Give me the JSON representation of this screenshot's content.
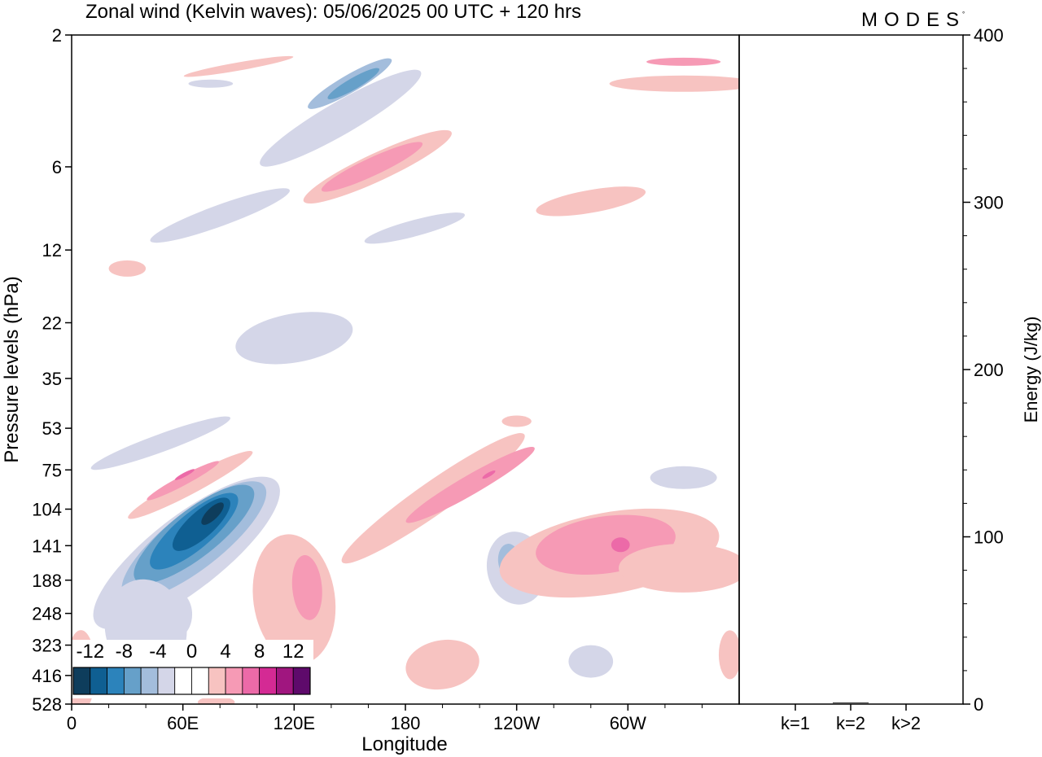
{
  "chart_data": [
    {
      "type": "heatmap",
      "title": "Zonal wind (Kelvin waves):  05/06/2025  00 UTC  + 120 hrs",
      "xlabel": "Longitude",
      "ylabel": "Pressure levels (hPa)",
      "x_ticks": [
        "0",
        "60E",
        "120E",
        "180",
        "120W",
        "60W"
      ],
      "x_tick_degrees": [
        0,
        60,
        120,
        180,
        240,
        300
      ],
      "xlim": [
        0,
        360
      ],
      "y_ticks": [
        "2",
        "6",
        "12",
        "22",
        "35",
        "53",
        "75",
        "104",
        "141",
        "188",
        "248",
        "323",
        "416",
        "528"
      ],
      "y_scale": "log-pressure (top = 2 hPa, bottom = 528 hPa)",
      "colorbar": {
        "labels": [
          "-12",
          "-8",
          "-4",
          "0",
          "4",
          "8",
          "12"
        ],
        "colors": [
          "#0e3d5c",
          "#0f5f92",
          "#2c83bb",
          "#66a0c9",
          "#a3bddc",
          "#d4d6e8",
          "#ffffff",
          "#ffffff",
          "#f7c3c1",
          "#f69ab5",
          "#ec6aa8",
          "#d42a94",
          "#a0167f",
          "#5e0a6b"
        ],
        "placement": "bottom-left"
      },
      "features": [
        {
          "label": "negative",
          "min_value": -14,
          "lon_center": 65,
          "pressure_hPa": 120
        },
        {
          "label": "positive",
          "min_value": 8,
          "lon_center": 70,
          "pressure_hPa": 80
        },
        {
          "label": "positive",
          "min_value": 8,
          "lon_center": 223,
          "pressure_hPa": 80
        },
        {
          "label": "positive",
          "min_value": 8,
          "lon_center": 297,
          "pressure_hPa": 140
        },
        {
          "label": "positive",
          "min_value": 6,
          "lon_center": 135,
          "pressure_hPa": 200
        },
        {
          "label": "negative",
          "min_value": -6,
          "lon_center": 235,
          "pressure_hPa": 160
        },
        {
          "label": "negative",
          "min_value": -6,
          "lon_center": 150,
          "pressure_hPa": 3
        },
        {
          "label": "positive",
          "min_value": 6,
          "lon_center": 160,
          "pressure_hPa": 6
        }
      ]
    },
    {
      "type": "bar",
      "ylabel": "Energy (J/kg)",
      "categories": [
        "k=1",
        "k=2",
        "k>2"
      ],
      "values": [
        0.5,
        1,
        0.5
      ],
      "ylim": [
        0,
        400
      ],
      "y_ticks": [
        0,
        100,
        200,
        300,
        400
      ],
      "grid": false
    }
  ],
  "logo": "MODES"
}
